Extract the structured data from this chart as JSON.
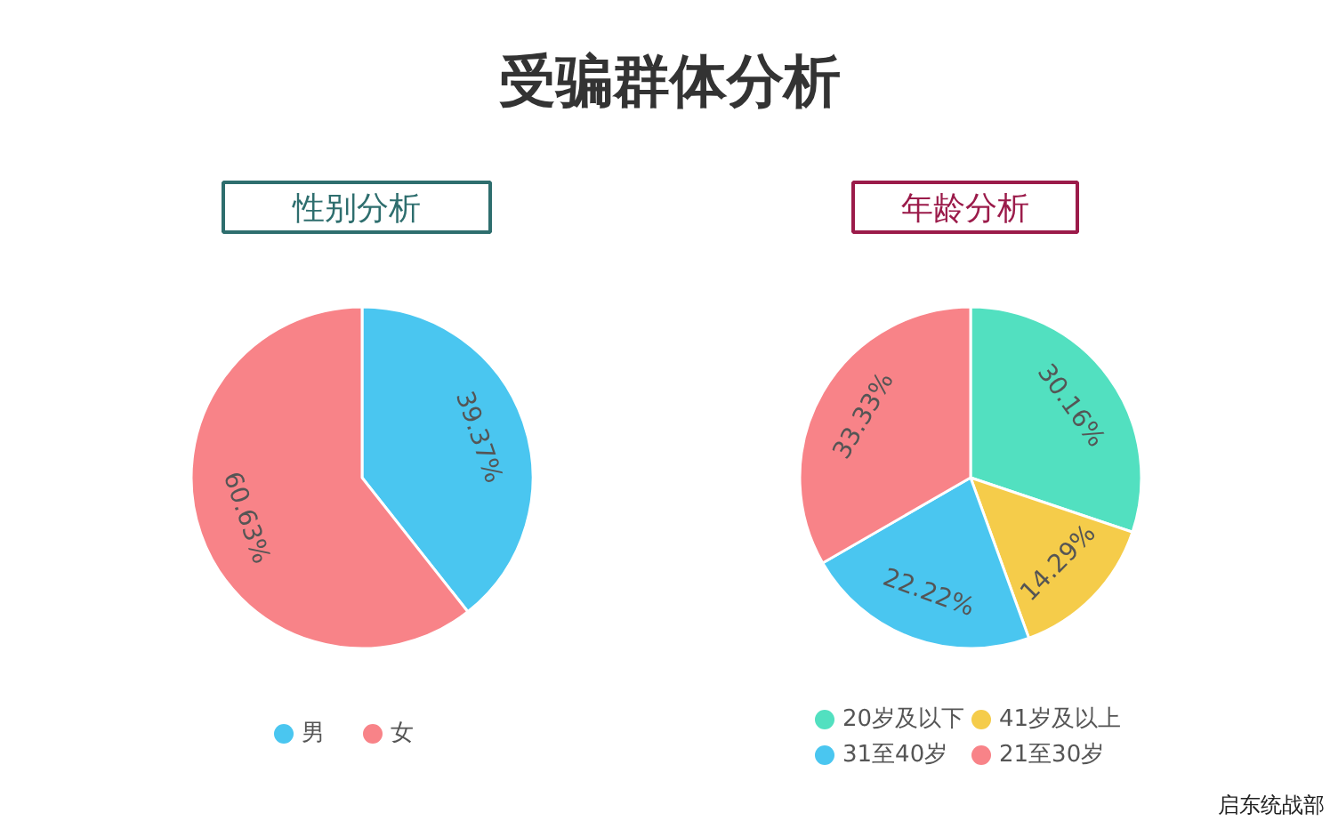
{
  "chart_data": [
    {
      "type": "pie",
      "title": "受骗群体分析",
      "subtitle": "性别分析",
      "categories": [
        "男",
        "女"
      ],
      "values": [
        39.37,
        60.63
      ],
      "colors": [
        "#4ac6f0",
        "#f88388"
      ],
      "value_labels": [
        "39.37%",
        "60.63%"
      ],
      "legend": "bottom"
    },
    {
      "type": "pie",
      "subtitle": "年龄分析",
      "categories": [
        "20岁及以下",
        "41岁及以上",
        "31至40岁",
        "21至30岁"
      ],
      "values": [
        30.16,
        14.29,
        22.22,
        33.33
      ],
      "colors": [
        "#52e0c0",
        "#f5cc4a",
        "#4ac6f0",
        "#f88388"
      ],
      "value_labels": [
        "30.16%",
        "14.29%",
        "22.22%",
        "33.33%"
      ],
      "legend": "bottom",
      "annotations": [
        "启东统战部"
      ]
    }
  ]
}
